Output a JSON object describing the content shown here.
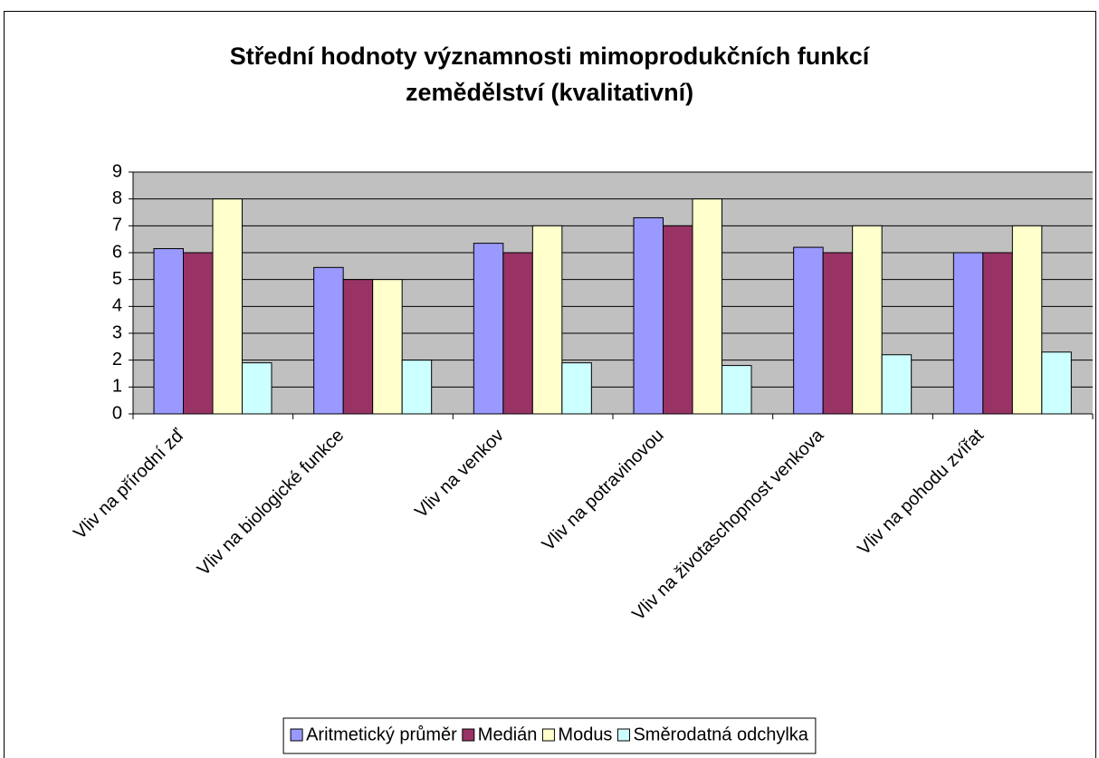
{
  "chart_data": {
    "type": "bar",
    "title": "Střední hodnoty významnosti mimoprodukčních funkcí zemědělství (kvalitativní)",
    "categories": [
      "Vliv na přírodní zď",
      "Vliv na biologické funkce",
      "Vliv na venkov",
      "Vliv na potravinovou",
      "Vliv na životaschopnost venkova",
      "Vliv na pohodu zvířat"
    ],
    "series": [
      {
        "name": "Aritmetický průměr",
        "color": "#9999ff",
        "values": [
          6.15,
          5.45,
          6.35,
          7.3,
          6.2,
          6.0
        ]
      },
      {
        "name": "Medián",
        "color": "#993366",
        "values": [
          6,
          5,
          6,
          7,
          6,
          6
        ]
      },
      {
        "name": "Modus",
        "color": "#ffffcc",
        "values": [
          8,
          5,
          7,
          8,
          7,
          7
        ]
      },
      {
        "name": "Směrodatná odchylka",
        "color": "#ccffff",
        "values": [
          1.9,
          2.0,
          1.9,
          1.8,
          2.2,
          2.3
        ]
      }
    ],
    "ylim": [
      0,
      9
    ],
    "yticks": [
      0,
      1,
      2,
      3,
      4,
      5,
      6,
      7,
      8,
      9
    ],
    "grid": true,
    "legend": "bottom"
  }
}
